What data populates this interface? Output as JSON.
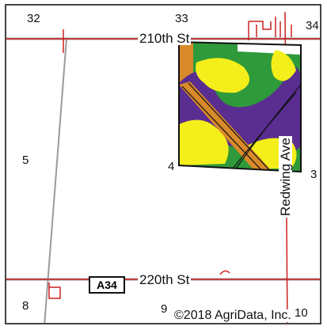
{
  "map": {
    "sections": {
      "s32": "32",
      "s33": "33",
      "s34": "34",
      "s5": "5",
      "s4": "4",
      "s3": "3",
      "s8": "8",
      "s9": "9",
      "s10": "10"
    },
    "roads": {
      "north": "210th St",
      "south": "220th St",
      "east": "Redwing Ave",
      "highway_shield": "A34"
    },
    "copyright": "©2018 AgriData, Inc.",
    "colors": {
      "section_line": "#cc2222",
      "road_line": "#888888",
      "field_green": "#2e9a3a",
      "field_purple": "#5a2d91",
      "field_yellow": "#f4ee1a",
      "field_orange": "#d88a2a",
      "field_outline": "#111111"
    }
  }
}
